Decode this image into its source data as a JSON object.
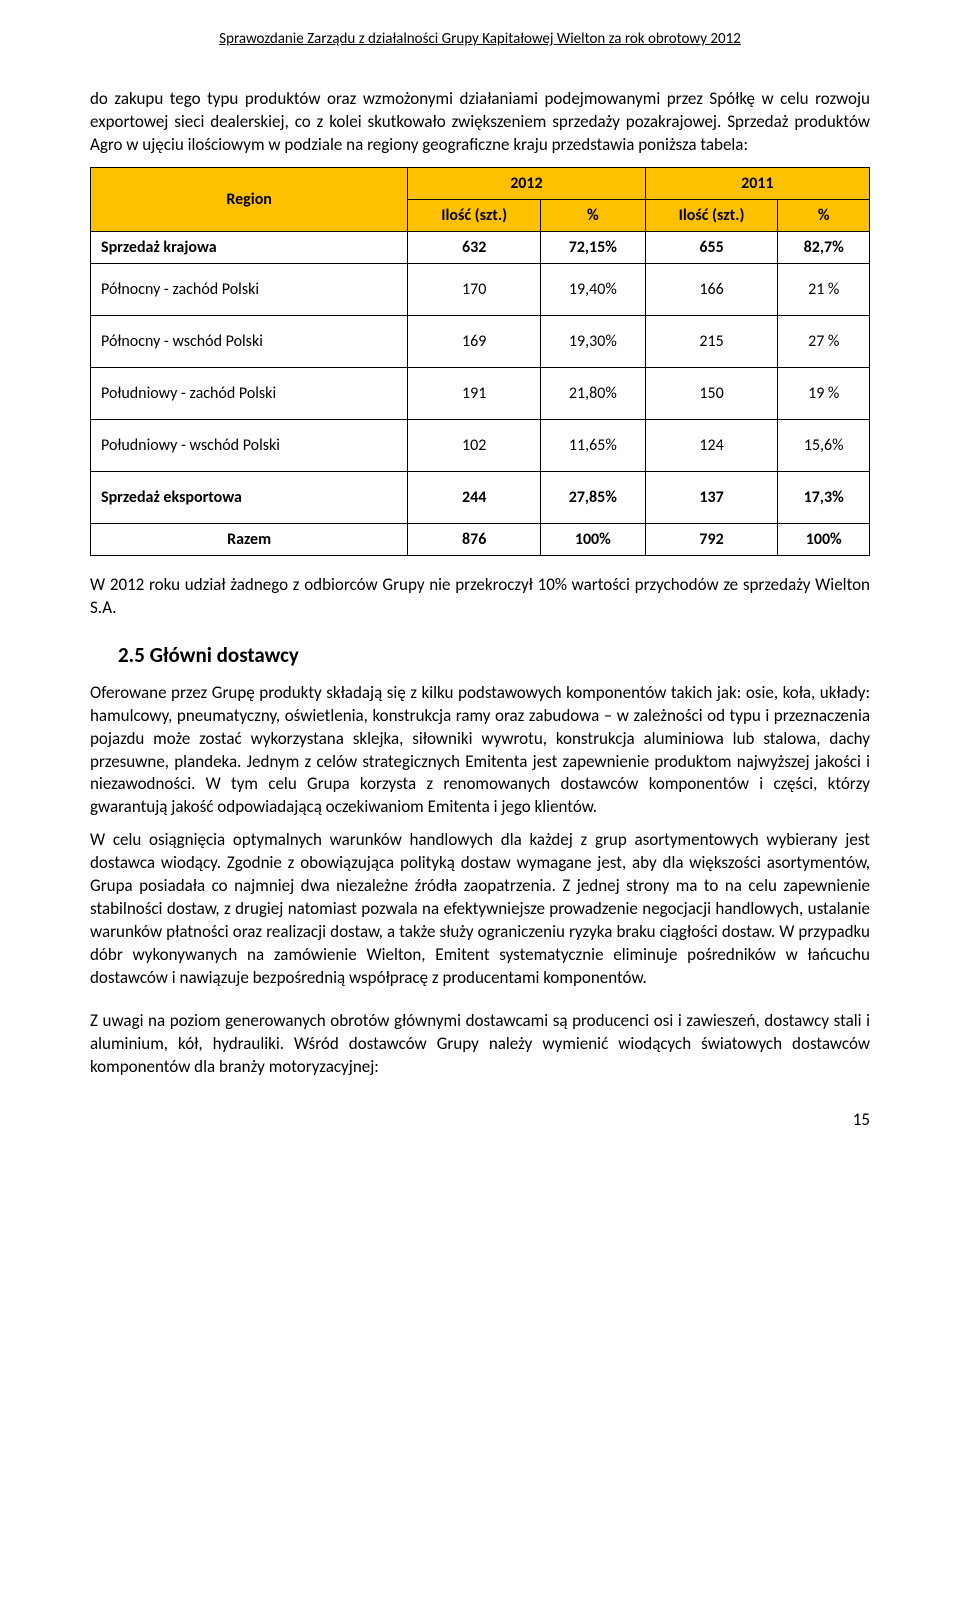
{
  "header": "Sprawozdanie Zarządu z działalności Grupy Kapitałowej Wielton za rok obrotowy 2012",
  "para1": "do zakupu tego typu produktów oraz wzmożonymi działaniami podejmowanymi przez Spółkę w celu rozwoju exportowej sieci dealerskiej, co z kolei skutkowało zwiększeniem sprzedaży pozakrajowej. Sprzedaż produktów Agro w ujęciu ilościowym w podziale na regiony geograficzne kraju przedstawia poniższa tabela:",
  "table": {
    "header_bg": "#ffc000",
    "region_label": "Region",
    "year_2012": "2012",
    "year_2011": "2011",
    "qty_label": "Ilość (szt.)",
    "pct_label": "%",
    "rows": [
      {
        "label": "Sprzedaż krajowa",
        "bold": true,
        "tall": false,
        "c1": "632",
        "c2": "72,15%",
        "c3": "655",
        "c4": "82,7%"
      },
      {
        "label": "Północny - zachód Polski",
        "bold": false,
        "tall": true,
        "c1": "170",
        "c2": "19,40%",
        "c3": "166",
        "c4": "21 %"
      },
      {
        "label": "Północny - wschód Polski",
        "bold": false,
        "tall": true,
        "c1": "169",
        "c2": "19,30%",
        "c3": "215",
        "c4": "27 %"
      },
      {
        "label": "Południowy - zachód Polski",
        "bold": false,
        "tall": true,
        "c1": "191",
        "c2": "21,80%",
        "c3": "150",
        "c4": "19 %"
      },
      {
        "label": "Południowy - wschód Polski",
        "bold": false,
        "tall": true,
        "c1": "102",
        "c2": "11,65%",
        "c3": "124",
        "c4": "15,6%"
      },
      {
        "label": "Sprzedaż eksportowa",
        "bold": true,
        "tall": true,
        "c1": "244",
        "c2": "27,85%",
        "c3": "137",
        "c4": "17,3%"
      },
      {
        "label": "Razem",
        "bold": true,
        "tall": false,
        "center": true,
        "c1": "876",
        "c2": "100%",
        "c3": "792",
        "c4": "100%"
      }
    ]
  },
  "para2": "W 2012 roku udział żadnego z odbiorców Grupy nie przekroczył 10% wartości przychodów ze sprzedaży Wielton S.A.",
  "section_title": "2.5 Główni dostawcy",
  "para3": "Oferowane przez Grupę produkty składają się z kilku podstawowych komponentów takich jak: osie, koła, układy: hamulcowy, pneumatyczny, oświetlenia, konstrukcja ramy oraz zabudowa – w zależności od typu i przeznaczenia pojazdu może zostać wykorzystana sklejka, siłowniki wywrotu, konstrukcja aluminiowa lub stalowa, dachy przesuwne, plandeka. Jednym z celów strategicznych Emitenta jest zapewnienie produktom najwyższej jakości i niezawodności. W tym celu Grupa korzysta z renomowanych dostawców komponentów i części, którzy gwarantują jakość odpowiadającą oczekiwaniom Emitenta i jego klientów.",
  "para4": "W celu osiągnięcia optymalnych warunków handlowych dla każdej z grup asortymentowych wybierany jest dostawca wiodący. Zgodnie z obowiązująca polityką dostaw wymagane jest, aby dla większości asortymentów, Grupa posiadała co najmniej dwa niezależne źródła zaopatrzenia. Z jednej strony ma to na celu zapewnienie stabilności dostaw, z drugiej natomiast pozwala na efektywniejsze prowadzenie negocjacji handlowych, ustalanie warunków płatności oraz realizacji dostaw, a także służy ograniczeniu ryzyka braku ciągłości dostaw. W przypadku dóbr wykonywanych na zamówienie Wielton, Emitent systematycznie eliminuje pośredników w łańcuchu dostawców i nawiązuje bezpośrednią współpracę z producentami komponentów.",
  "para5": "Z uwagi na poziom generowanych obrotów głównymi dostawcami są producenci osi i zawieszeń, dostawcy stali i aluminium, kół, hydrauliki. Wśród dostawców Grupy należy wymienić wiodących światowych dostawców komponentów dla branży motoryzacyjnej:",
  "page_number": "15"
}
